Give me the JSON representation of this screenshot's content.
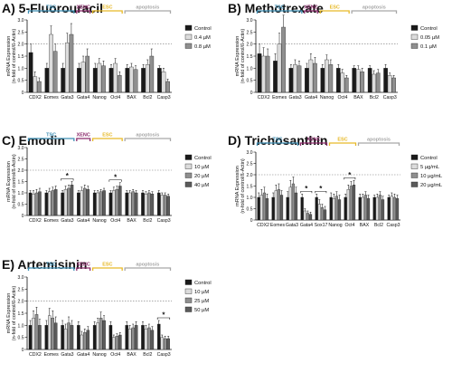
{
  "colors": {
    "tsc": "#3f8fb5",
    "xenc": "#8b2a6b",
    "esc": "#e7b928",
    "apoptosis": "#a7a7a7",
    "fills": [
      "#1a1a1a",
      "#dcdcdc",
      "#8f8f8f",
      "#5b5b5b"
    ]
  },
  "group_labels": {
    "tsc": "TSC",
    "xenc": "XENC",
    "esc": "ESC",
    "apoptosis": "apoptosis"
  },
  "ylabel_line1": "mRNA Expression",
  "ylabel_line2": "(n-fold of control/ß-Actin)",
  "panels": [
    {
      "title": "A) 5-Fluorouracil",
      "legend": [
        "Control",
        "0.4 µM",
        "0.8 µM"
      ],
      "genes": [
        "CDX2",
        "Eomes",
        "Gata3",
        "Gata4",
        "Nanog",
        "Oct4",
        "BAX",
        "Bcl2",
        "Casp3"
      ],
      "groups": {
        "tsc": [
          0,
          2
        ],
        "xenc": [
          3,
          3
        ],
        "esc": [
          4,
          5
        ],
        "apoptosis": [
          6,
          8
        ]
      },
      "stars": []
    },
    {
      "title": "B) Methotrexate",
      "legend": [
        "Control",
        "0.05 µM",
        "0.1 µM"
      ],
      "genes": [
        "CDX2",
        "Eomes",
        "Gata3",
        "Gata4",
        "Nanog",
        "Oct4",
        "BAX",
        "Bcl2",
        "Casp3"
      ],
      "groups": {
        "tsc": [
          0,
          2
        ],
        "xenc": [
          3,
          3
        ],
        "esc": [
          4,
          5
        ],
        "apoptosis": [
          6,
          8
        ]
      },
      "stars": []
    },
    {
      "title": "C) Emodin",
      "legend": [
        "Control",
        "10 µM",
        "20 µM",
        "40 µM"
      ],
      "genes": [
        "CDX2",
        "Eomes",
        "Gata3",
        "Gata4",
        "Nanog",
        "Oct4",
        "BAX",
        "Bcl2",
        "Casp3"
      ],
      "groups": {
        "tsc": [
          0,
          2
        ],
        "xenc": [
          3,
          3
        ],
        "esc": [
          4,
          5
        ],
        "apoptosis": [
          6,
          8
        ]
      },
      "stars": [
        {
          "gene": 2,
          "label": "*"
        },
        {
          "gene": 5,
          "label": "*"
        }
      ]
    },
    {
      "title": "D) Trichosanthin",
      "legend": [
        "Control",
        "5 µg/mL",
        "10 µg/mL",
        "20 µg/mL"
      ],
      "genes": [
        "CDX2",
        "Eomes",
        "Gata3",
        "Gata4",
        "Sox17",
        "Nanog",
        "Oct4",
        "BAX",
        "Bcl2",
        "Casp3"
      ],
      "groups": {
        "tsc": [
          0,
          2
        ],
        "xenc": [
          3,
          4
        ],
        "esc": [
          5,
          6
        ],
        "apoptosis": [
          7,
          9
        ]
      },
      "stars": [
        {
          "gene": 3,
          "label": "*"
        },
        {
          "gene": 4,
          "label": "*"
        },
        {
          "gene": 6,
          "label": "*"
        }
      ]
    },
    {
      "title": "E) Artemisinin",
      "legend": [
        "Control",
        "10 µM",
        "25 µM",
        "50 µM"
      ],
      "genes": [
        "CDX2",
        "Eomes",
        "Gata3",
        "Gata4",
        "Nanog",
        "Oct4",
        "BAX",
        "Bcl2",
        "Casp3"
      ],
      "groups": {
        "tsc": [
          0,
          2
        ],
        "xenc": [
          3,
          3
        ],
        "esc": [
          4,
          5
        ],
        "apoptosis": [
          6,
          8
        ]
      },
      "stars": [
        {
          "gene": 8,
          "label": "*"
        }
      ]
    }
  ],
  "chart_data": [
    {
      "type": "bar",
      "title": "A) 5-Fluorouracil",
      "ylabel": "mRNA Expression (n-fold of control/ß-Actin)",
      "ylim": [
        0,
        3
      ],
      "yticks": [
        0,
        0.5,
        1.0,
        1.5,
        2.0,
        2.5,
        3.0
      ],
      "reference_line": 2,
      "categories": [
        "CDX2",
        "Eomes",
        "Gata3",
        "Gata4",
        "Nanog",
        "Oct4",
        "BAX",
        "Bcl2",
        "Casp3"
      ],
      "series": [
        {
          "name": "Control",
          "values": [
            1.65,
            1.0,
            1.0,
            1.0,
            1.0,
            1.0,
            1.0,
            1.0,
            1.0
          ],
          "errors": [
            0.35,
            0.2,
            0.2,
            0.2,
            0.2,
            0.15,
            0.15,
            0.15,
            0.1
          ]
        },
        {
          "name": "0.4 µM",
          "values": [
            0.65,
            2.4,
            2.05,
            1.25,
            1.2,
            1.2,
            1.05,
            1.15,
            0.85
          ],
          "errors": [
            0.2,
            0.35,
            0.4,
            0.25,
            0.2,
            0.2,
            0.15,
            0.2,
            0.15
          ]
        },
        {
          "name": "0.8 µM",
          "values": [
            0.45,
            1.7,
            2.4,
            1.5,
            1.1,
            0.7,
            0.95,
            1.5,
            0.45
          ],
          "errors": [
            0.15,
            0.3,
            0.45,
            0.3,
            0.2,
            0.15,
            0.15,
            0.3,
            0.1
          ]
        }
      ]
    },
    {
      "type": "bar",
      "title": "B) Methotrexate",
      "ylabel": "mRNA Expression (n-fold of control/ß-Actin)",
      "ylim": [
        0,
        3
      ],
      "yticks": [
        0,
        0.5,
        1.0,
        1.5,
        2.0,
        2.5,
        3.0
      ],
      "reference_line": 2,
      "categories": [
        "CDX2",
        "Eomes",
        "Gata3",
        "Gata4",
        "Nanog",
        "Oct4",
        "BAX",
        "Bcl2",
        "Casp3"
      ],
      "series": [
        {
          "name": "Control",
          "values": [
            1.6,
            1.3,
            1.0,
            1.0,
            1.0,
            1.0,
            1.0,
            1.0,
            1.0
          ],
          "errors": [
            0.4,
            0.3,
            0.15,
            0.2,
            0.15,
            0.15,
            0.1,
            0.1,
            0.15
          ]
        },
        {
          "name": "0.05 µM",
          "values": [
            1.5,
            2.0,
            1.15,
            1.35,
            1.35,
            0.8,
            0.95,
            0.75,
            0.7
          ],
          "errors": [
            0.35,
            0.45,
            0.2,
            0.25,
            0.2,
            0.15,
            0.15,
            0.15,
            0.1
          ]
        },
        {
          "name": "0.1 µM",
          "values": [
            1.5,
            2.7,
            1.1,
            1.2,
            1.15,
            0.6,
            0.85,
            0.8,
            0.6
          ],
          "errors": [
            0.3,
            0.5,
            0.2,
            0.25,
            0.2,
            0.1,
            0.15,
            0.15,
            0.1
          ]
        }
      ]
    },
    {
      "type": "bar",
      "title": "C) Emodin",
      "ylabel": "mRNA Expression (n-fold of control/ß-Actin)",
      "ylim": [
        0,
        3
      ],
      "yticks": [
        0,
        0.5,
        1.0,
        1.5,
        2.0,
        2.5,
        3.0
      ],
      "reference_line": 2,
      "categories": [
        "CDX2",
        "Eomes",
        "Gata3",
        "Gata4",
        "Nanog",
        "Oct4",
        "BAX",
        "Bcl2",
        "Casp3"
      ],
      "series": [
        {
          "name": "Control",
          "values": [
            1.0,
            1.0,
            1.0,
            1.0,
            1.0,
            1.0,
            1.0,
            1.0,
            1.0
          ],
          "errors": [
            0.1,
            0.1,
            0.1,
            0.1,
            0.1,
            0.1,
            0.1,
            0.1,
            0.1
          ]
        },
        {
          "name": "10 µM",
          "values": [
            0.95,
            1.05,
            1.15,
            1.1,
            1.0,
            1.1,
            1.0,
            0.95,
            0.9
          ],
          "errors": [
            0.15,
            0.15,
            0.15,
            0.15,
            0.1,
            0.15,
            0.1,
            0.1,
            0.1
          ]
        },
        {
          "name": "20 µM",
          "values": [
            1.0,
            1.1,
            1.2,
            1.2,
            1.05,
            1.15,
            1.05,
            1.0,
            0.9
          ],
          "errors": [
            0.15,
            0.15,
            0.15,
            0.15,
            0.1,
            0.15,
            0.1,
            0.1,
            0.1
          ]
        },
        {
          "name": "40 µM",
          "values": [
            1.05,
            1.15,
            1.35,
            1.15,
            1.1,
            1.3,
            1.0,
            0.95,
            0.85
          ],
          "errors": [
            0.15,
            0.15,
            0.15,
            0.15,
            0.1,
            0.15,
            0.1,
            0.1,
            0.1
          ]
        }
      ]
    },
    {
      "type": "bar",
      "title": "D) Trichosanthin",
      "ylabel": "mRNA Expression (n-fold of control/ß-Actin)",
      "ylim": [
        0,
        3
      ],
      "yticks": [
        0,
        0.5,
        1.0,
        1.5,
        2.0,
        2.5,
        3.0
      ],
      "reference_line": 2,
      "categories": [
        "CDX2",
        "Eomes",
        "Gata3",
        "Gata4",
        "Sox17",
        "Nanog",
        "Oct4",
        "BAX",
        "Bcl2",
        "Casp3"
      ],
      "series": [
        {
          "name": "Control",
          "values": [
            1.0,
            1.0,
            1.0,
            1.0,
            1.0,
            1.0,
            1.0,
            1.0,
            1.0,
            1.0
          ],
          "errors": [
            0.2,
            0.2,
            0.25,
            0.15,
            0.15,
            0.2,
            0.15,
            0.15,
            0.1,
            0.1
          ]
        },
        {
          "name": "5 µg/mL",
          "values": [
            1.1,
            1.3,
            1.45,
            0.4,
            0.7,
            0.95,
            1.35,
            1.0,
            1.0,
            1.05
          ],
          "errors": [
            0.25,
            0.25,
            0.3,
            0.1,
            0.2,
            0.2,
            0.2,
            0.15,
            0.15,
            0.15
          ]
        },
        {
          "name": "10 µg/mL",
          "values": [
            1.2,
            1.35,
            1.6,
            0.3,
            0.55,
            1.05,
            1.5,
            1.1,
            1.1,
            1.0
          ],
          "errors": [
            0.25,
            0.25,
            0.3,
            0.1,
            0.15,
            0.2,
            0.2,
            0.15,
            0.15,
            0.15
          ]
        },
        {
          "name": "20 µg/mL",
          "values": [
            0.95,
            1.1,
            1.2,
            0.25,
            0.45,
            0.9,
            1.55,
            0.95,
            0.9,
            0.95
          ],
          "errors": [
            0.2,
            0.2,
            0.25,
            0.1,
            0.15,
            0.2,
            0.2,
            0.15,
            0.15,
            0.15
          ]
        }
      ]
    },
    {
      "type": "bar",
      "title": "E) Artemisinin",
      "ylabel": "mRNA Expression (n-fold of control/ß-Actin)",
      "ylim": [
        0,
        3
      ],
      "yticks": [
        0,
        0.5,
        1.0,
        1.5,
        2.0,
        2.5,
        3.0
      ],
      "reference_line": 2,
      "categories": [
        "CDX2",
        "Eomes",
        "Gata3",
        "Gata4",
        "Nanog",
        "Oct4",
        "BAX",
        "Bcl2",
        "Casp3"
      ],
      "series": [
        {
          "name": "Control",
          "values": [
            1.0,
            1.0,
            1.0,
            1.0,
            1.0,
            1.0,
            1.0,
            1.0,
            1.05
          ],
          "errors": [
            0.2,
            0.2,
            0.2,
            0.15,
            0.15,
            0.15,
            0.15,
            0.15,
            0.15
          ]
        },
        {
          "name": "10 µM",
          "values": [
            1.3,
            1.4,
            0.85,
            0.6,
            1.1,
            0.5,
            0.85,
            0.85,
            0.5
          ],
          "errors": [
            0.3,
            0.3,
            0.2,
            0.15,
            0.2,
            0.1,
            0.15,
            0.15,
            0.1
          ]
        },
        {
          "name": "25 µM",
          "values": [
            1.45,
            1.3,
            1.1,
            0.7,
            1.3,
            0.55,
            0.9,
            0.9,
            0.45
          ],
          "errors": [
            0.3,
            0.3,
            0.25,
            0.15,
            0.25,
            0.1,
            0.15,
            0.15,
            0.1
          ]
        },
        {
          "name": "50 µM",
          "values": [
            1.0,
            1.1,
            1.0,
            0.8,
            1.2,
            0.6,
            1.0,
            0.8,
            0.45
          ],
          "errors": [
            0.25,
            0.25,
            0.2,
            0.15,
            0.2,
            0.1,
            0.15,
            0.15,
            0.1
          ]
        }
      ]
    }
  ]
}
